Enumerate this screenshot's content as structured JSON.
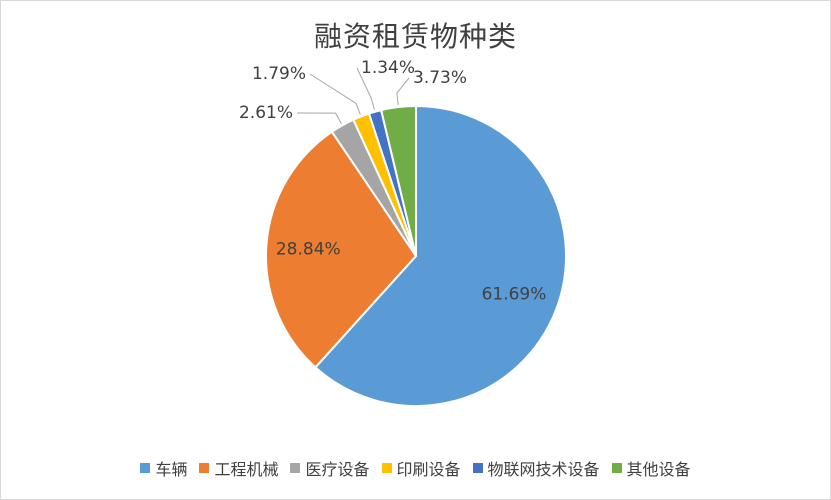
{
  "chart_data": {
    "type": "pie",
    "title": "融资租赁物种类",
    "categories": [
      "车辆",
      "工程机械",
      "医疗设备",
      "印刷设备",
      "物联网技术设备",
      "其他设备"
    ],
    "values": [
      61.69,
      28.84,
      2.61,
      1.79,
      1.34,
      3.73
    ],
    "labels": [
      "61.69%",
      "28.84%",
      "2.61%",
      "1.79%",
      "1.34%",
      "3.73%"
    ],
    "colors": [
      "#5b9bd5",
      "#ed7d31",
      "#a5a5a5",
      "#ffc000",
      "#4472c4",
      "#70ad47"
    ],
    "start_angle": "12-o-clock",
    "direction": "clockwise",
    "legend_position": "bottom"
  }
}
